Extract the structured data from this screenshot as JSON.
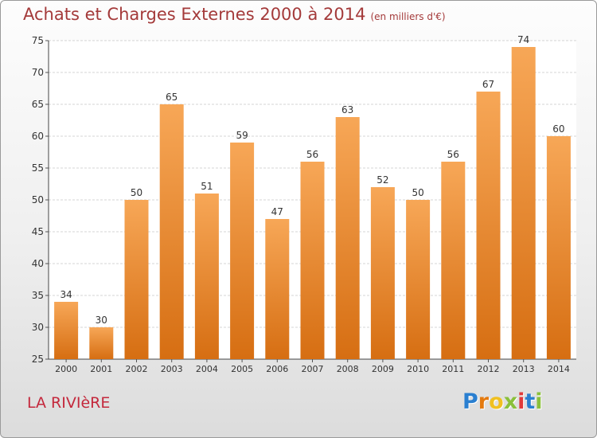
{
  "header": {
    "title": "Achats et Charges Externes 2000 à 2014",
    "unit": "(en milliers d'€)"
  },
  "footer": {
    "city": "LA RIVIèRE",
    "logo_letters": [
      "P",
      "r",
      "o",
      "x",
      "i",
      "t",
      "i"
    ]
  },
  "colors": {
    "title": "#a43a3a",
    "city": "#c4283c",
    "bar_top": "#f7a757",
    "bar_bottom": "#d66e12",
    "logo": [
      "#2a7fd0",
      "#e47a10",
      "#f0c020",
      "#8ac03a",
      "#e03a3a",
      "#2a7fd0",
      "#8ac03a"
    ]
  },
  "chart_data": {
    "type": "bar",
    "title": "Achats et Charges Externes 2000 à 2014",
    "categories": [
      "2000",
      "2001",
      "2002",
      "2003",
      "2004",
      "2005",
      "2006",
      "2007",
      "2008",
      "2009",
      "2010",
      "2011",
      "2012",
      "2013",
      "2014"
    ],
    "values": [
      34,
      30,
      50,
      65,
      51,
      59,
      47,
      56,
      63,
      52,
      50,
      56,
      67,
      74,
      60
    ],
    "ylim": [
      25,
      75
    ],
    "yticks": [
      25,
      30,
      35,
      40,
      45,
      50,
      55,
      60,
      65,
      70,
      75
    ],
    "grid": true,
    "data_labels": true
  }
}
